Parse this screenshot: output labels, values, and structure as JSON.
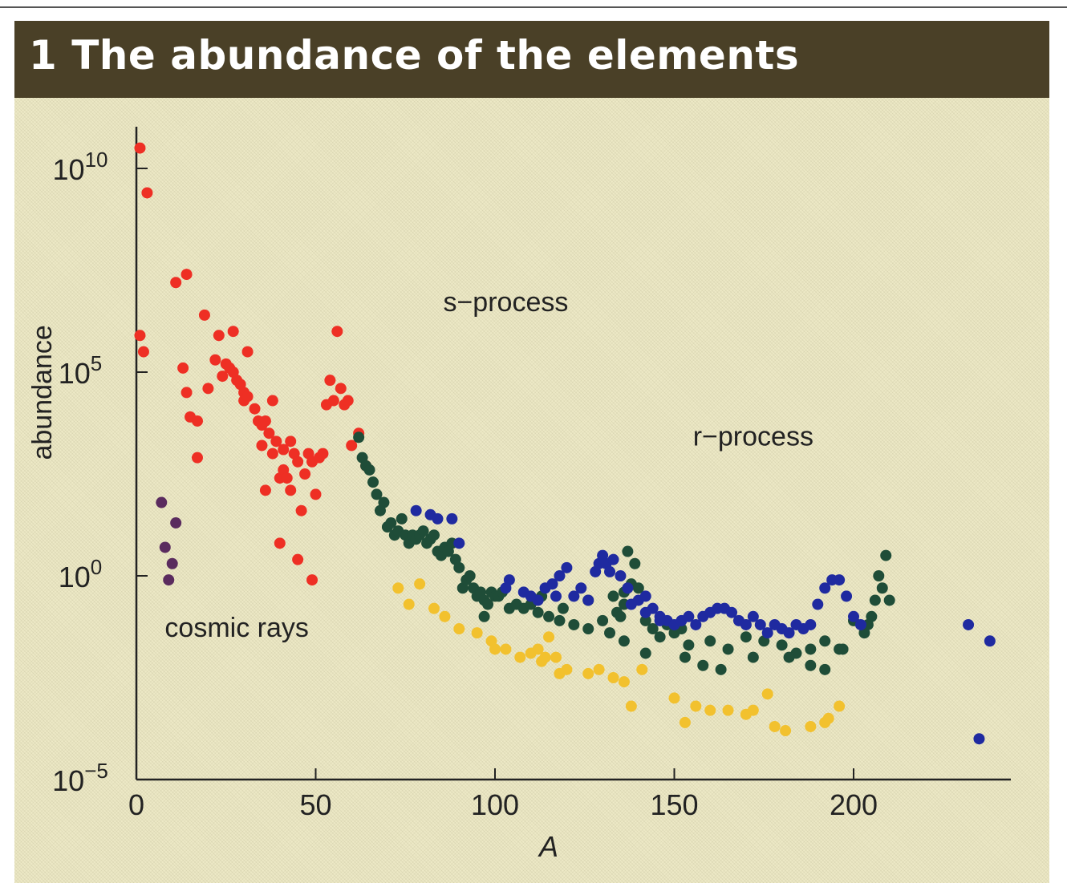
{
  "title": "1 The abundance of the elements",
  "colors": {
    "background": "#ede9c6",
    "title_bar": "#4a4027",
    "cosmic_rays": "#ee2f24",
    "purple": "#5a2b5e",
    "s_process": "#1f4d38",
    "r_process": "#1f2aa0",
    "yellow": "#f2c12e"
  },
  "chart_data": {
    "type": "scatter",
    "title": "",
    "xlabel": "A",
    "ylabel": "abundance",
    "xlim": [
      0,
      240
    ],
    "ylim_log10": [
      -5,
      11
    ],
    "y_scale": "log",
    "grid": false,
    "x_ticks": [
      {
        "value": 0,
        "label": "0"
      },
      {
        "value": 50,
        "label": "50"
      },
      {
        "value": 100,
        "label": "100"
      },
      {
        "value": 150,
        "label": "150"
      },
      {
        "value": 200,
        "label": "200"
      }
    ],
    "y_ticks": [
      {
        "log10": 10,
        "base": "10",
        "exp": "10"
      },
      {
        "log10": 5,
        "base": "10",
        "exp": "5"
      },
      {
        "log10": 0,
        "base": "10",
        "exp": "0"
      },
      {
        "log10": -5,
        "base": "10",
        "exp": "−5"
      }
    ],
    "annotations": [
      {
        "text": "s−process",
        "x": 103,
        "log10": 6.5
      },
      {
        "text": "r−process",
        "x": 172,
        "log10": 3.2
      },
      {
        "text": "cosmic rays",
        "x": 28,
        "log10": -1.5
      }
    ],
    "series": [
      {
        "color_key": "cosmic_rays",
        "points": [
          [
            1,
            10.5
          ],
          [
            3,
            9.4
          ],
          [
            1,
            5.9
          ],
          [
            2,
            5.5
          ],
          [
            11,
            7.2
          ],
          [
            14,
            7.4
          ],
          [
            19,
            6.4
          ],
          [
            23,
            5.9
          ],
          [
            27,
            6.0
          ],
          [
            31,
            5.5
          ],
          [
            13,
            5.1
          ],
          [
            14,
            4.5
          ],
          [
            15,
            3.9
          ],
          [
            17,
            3.8
          ],
          [
            20,
            4.6
          ],
          [
            22,
            5.3
          ],
          [
            24,
            4.9
          ],
          [
            25,
            5.2
          ],
          [
            26,
            5.1
          ],
          [
            27,
            5.0
          ],
          [
            28,
            4.8
          ],
          [
            29,
            4.7
          ],
          [
            30,
            4.5
          ],
          [
            30,
            4.3
          ],
          [
            31,
            4.4
          ],
          [
            33,
            4.1
          ],
          [
            34,
            3.8
          ],
          [
            35,
            3.7
          ],
          [
            36,
            3.8
          ],
          [
            37,
            3.5
          ],
          [
            36,
            2.1
          ],
          [
            38,
            4.3
          ],
          [
            39,
            3.3
          ],
          [
            40,
            2.4
          ],
          [
            41,
            2.6
          ],
          [
            42,
            2.4
          ],
          [
            43,
            2.1
          ],
          [
            44,
            3.0
          ],
          [
            45,
            2.8
          ],
          [
            46,
            1.6
          ],
          [
            47,
            2.5
          ],
          [
            48,
            3.0
          ],
          [
            49,
            2.8
          ],
          [
            50,
            2.0
          ],
          [
            51,
            2.9
          ],
          [
            52,
            3.0
          ],
          [
            53,
            4.2
          ],
          [
            54,
            4.8
          ],
          [
            55,
            4.3
          ],
          [
            56,
            6.0
          ],
          [
            57,
            4.6
          ],
          [
            58,
            4.2
          ],
          [
            59,
            4.3
          ],
          [
            60,
            3.2
          ],
          [
            62,
            3.5
          ],
          [
            64,
            2.7
          ],
          [
            17,
            2.9
          ],
          [
            40,
            0.8
          ],
          [
            45,
            0.4
          ],
          [
            49,
            -0.1
          ],
          [
            38,
            3.0
          ],
          [
            41,
            3.1
          ],
          [
            35,
            3.2
          ],
          [
            43,
            3.3
          ]
        ]
      },
      {
        "color_key": "purple",
        "points": [
          [
            7,
            1.8
          ],
          [
            8,
            0.7
          ],
          [
            10,
            0.3
          ],
          [
            11,
            1.3
          ],
          [
            9,
            -0.1
          ]
        ]
      },
      {
        "color_key": "s_process",
        "points": [
          [
            62,
            3.4
          ],
          [
            63,
            2.9
          ],
          [
            64,
            2.7
          ],
          [
            65,
            2.6
          ],
          [
            66,
            2.3
          ],
          [
            67,
            2.0
          ],
          [
            68,
            1.6
          ],
          [
            69,
            1.8
          ],
          [
            70,
            1.2
          ],
          [
            71,
            1.3
          ],
          [
            72,
            1.0
          ],
          [
            73,
            1.1
          ],
          [
            74,
            1.4
          ],
          [
            75,
            1.0
          ],
          [
            76,
            0.8
          ],
          [
            77,
            1.0
          ],
          [
            78,
            0.9
          ],
          [
            79,
            1.0
          ],
          [
            80,
            1.1
          ],
          [
            81,
            0.8
          ],
          [
            82,
            0.9
          ],
          [
            83,
            1.0
          ],
          [
            84,
            0.6
          ],
          [
            85,
            0.5
          ],
          [
            86,
            0.7
          ],
          [
            87,
            0.6
          ],
          [
            88,
            0.8
          ],
          [
            89,
            0.4
          ],
          [
            90,
            0.2
          ],
          [
            91,
            -0.3
          ],
          [
            92,
            -0.1
          ],
          [
            93,
            0.0
          ],
          [
            94,
            -0.3
          ],
          [
            95,
            -0.5
          ],
          [
            96,
            -0.4
          ],
          [
            97,
            -0.6
          ],
          [
            98,
            -0.7
          ],
          [
            99,
            -0.4
          ],
          [
            100,
            -0.5
          ],
          [
            101,
            -0.5
          ],
          [
            102,
            -0.4
          ],
          [
            104,
            -0.8
          ],
          [
            106,
            -0.7
          ],
          [
            108,
            -0.8
          ],
          [
            110,
            -0.7
          ],
          [
            112,
            -0.9
          ],
          [
            115,
            -1.0
          ],
          [
            118,
            -1.1
          ],
          [
            122,
            -1.2
          ],
          [
            126,
            -1.3
          ],
          [
            130,
            -1.1
          ],
          [
            134,
            -0.9
          ],
          [
            136,
            -0.7
          ],
          [
            138,
            -0.2
          ],
          [
            140,
            -0.3
          ],
          [
            142,
            -1.1
          ],
          [
            144,
            -1.3
          ],
          [
            146,
            -1.5
          ],
          [
            148,
            -1.2
          ],
          [
            150,
            -1.4
          ],
          [
            152,
            -1.3
          ],
          [
            154,
            -1.7
          ],
          [
            160,
            -1.6
          ],
          [
            165,
            -1.8
          ],
          [
            170,
            -1.5
          ],
          [
            175,
            -1.6
          ],
          [
            180,
            -1.7
          ],
          [
            184,
            -1.9
          ],
          [
            188,
            -1.8
          ],
          [
            192,
            -1.6
          ],
          [
            196,
            -1.8
          ],
          [
            200,
            -1.1
          ],
          [
            203,
            -1.4
          ],
          [
            204,
            -1.2
          ],
          [
            206,
            -0.6
          ],
          [
            207,
            0.0
          ],
          [
            209,
            0.5
          ],
          [
            210,
            -0.6
          ],
          [
            136,
            -0.4
          ],
          [
            142,
            -1.9
          ],
          [
            136,
            -1.6
          ],
          [
            132,
            -1.4
          ],
          [
            126,
            -0.6
          ],
          [
            119,
            -0.8
          ],
          [
            113,
            -0.5
          ],
          [
            97,
            -1.0
          ],
          [
            133,
            -0.5
          ],
          [
            137,
            0.6
          ],
          [
            139,
            0.3
          ],
          [
            153,
            -2.0
          ],
          [
            158,
            -2.2
          ],
          [
            163,
            -2.3
          ],
          [
            172,
            -2.0
          ],
          [
            182,
            -2.0
          ],
          [
            188,
            -2.2
          ],
          [
            192,
            -2.3
          ],
          [
            197,
            -1.8
          ],
          [
            205,
            -1.0
          ],
          [
            208,
            -0.3
          ],
          [
            135,
            -1.0
          ]
        ]
      },
      {
        "color_key": "r_process",
        "points": [
          [
            78,
            1.6
          ],
          [
            82,
            1.5
          ],
          [
            84,
            1.4
          ],
          [
            88,
            1.4
          ],
          [
            90,
            0.8
          ],
          [
            104,
            -0.1
          ],
          [
            108,
            -0.4
          ],
          [
            112,
            -0.6
          ],
          [
            114,
            -0.3
          ],
          [
            116,
            -0.2
          ],
          [
            118,
            0.0
          ],
          [
            120,
            0.2
          ],
          [
            122,
            -0.5
          ],
          [
            124,
            -0.3
          ],
          [
            126,
            -0.6
          ],
          [
            128,
            0.1
          ],
          [
            129,
            0.3
          ],
          [
            130,
            0.5
          ],
          [
            131,
            0.3
          ],
          [
            132,
            0.1
          ],
          [
            133,
            0.4
          ],
          [
            135,
            0.0
          ],
          [
            137,
            -0.3
          ],
          [
            140,
            -0.6
          ],
          [
            142,
            -0.5
          ],
          [
            144,
            -0.8
          ],
          [
            146,
            -1.0
          ],
          [
            148,
            -1.1
          ],
          [
            150,
            -1.2
          ],
          [
            152,
            -1.1
          ],
          [
            154,
            -1.0
          ],
          [
            156,
            -1.2
          ],
          [
            158,
            -1.0
          ],
          [
            160,
            -0.9
          ],
          [
            162,
            -0.8
          ],
          [
            164,
            -0.8
          ],
          [
            166,
            -0.9
          ],
          [
            168,
            -1.1
          ],
          [
            170,
            -1.2
          ],
          [
            172,
            -1.0
          ],
          [
            174,
            -1.2
          ],
          [
            176,
            -1.4
          ],
          [
            178,
            -1.2
          ],
          [
            180,
            -1.3
          ],
          [
            182,
            -1.4
          ],
          [
            184,
            -1.2
          ],
          [
            186,
            -1.3
          ],
          [
            188,
            -1.2
          ],
          [
            190,
            -0.7
          ],
          [
            192,
            -0.3
          ],
          [
            194,
            -0.1
          ],
          [
            196,
            -0.1
          ],
          [
            198,
            -0.5
          ],
          [
            200,
            -1.0
          ],
          [
            202,
            -1.2
          ],
          [
            232,
            -1.2
          ],
          [
            238,
            -1.6
          ],
          [
            235,
            -4.0
          ],
          [
            138,
            -0.7
          ],
          [
            142,
            -0.9
          ],
          [
            117,
            -0.5
          ],
          [
            110,
            -0.5
          ],
          [
            103,
            -0.3
          ],
          [
            146,
            -1.1
          ]
        ]
      },
      {
        "color_key": "yellow",
        "points": [
          [
            73,
            -0.3
          ],
          [
            76,
            -0.7
          ],
          [
            79,
            -0.2
          ],
          [
            83,
            -0.8
          ],
          [
            86,
            -1.0
          ],
          [
            90,
            -1.3
          ],
          [
            95,
            -1.4
          ],
          [
            99,
            -1.6
          ],
          [
            103,
            -1.8
          ],
          [
            107,
            -2.0
          ],
          [
            110,
            -1.9
          ],
          [
            112,
            -1.8
          ],
          [
            113,
            -2.1
          ],
          [
            115,
            -1.5
          ],
          [
            117,
            -2.0
          ],
          [
            120,
            -2.3
          ],
          [
            126,
            -2.4
          ],
          [
            129,
            -2.3
          ],
          [
            133,
            -2.5
          ],
          [
            136,
            -2.6
          ],
          [
            138,
            -3.2
          ],
          [
            141,
            -2.3
          ],
          [
            150,
            -3.0
          ],
          [
            153,
            -3.6
          ],
          [
            156,
            -3.2
          ],
          [
            160,
            -3.3
          ],
          [
            165,
            -3.3
          ],
          [
            170,
            -3.4
          ],
          [
            172,
            -3.3
          ],
          [
            178,
            -3.7
          ],
          [
            181,
            -3.8
          ],
          [
            188,
            -3.7
          ],
          [
            192,
            -3.6
          ],
          [
            193,
            -3.5
          ],
          [
            196,
            -3.2
          ],
          [
            176,
            -2.9
          ],
          [
            114,
            -2.0
          ],
          [
            118,
            -2.4
          ],
          [
            100,
            -1.8
          ]
        ]
      }
    ]
  }
}
